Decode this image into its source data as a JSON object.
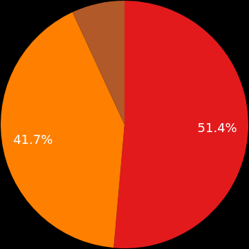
{
  "chart_data": {
    "type": "pie",
    "values": [
      51.4,
      41.7,
      6.9
    ],
    "value_labels": [
      "51.4%",
      "41.7%",
      null
    ],
    "colors": [
      "#e31a1c",
      "#ff7f00",
      "#b15928"
    ],
    "data_labels": true
  }
}
